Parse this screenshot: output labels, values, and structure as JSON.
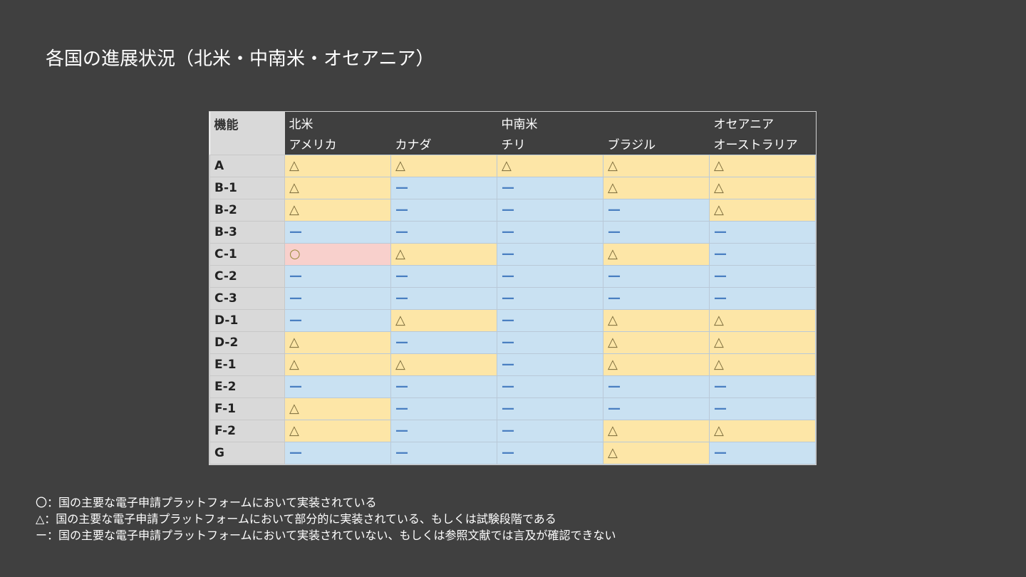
{
  "title": "各国の進展状況（北米・中南米・オセアニア）",
  "table": {
    "corner_label": "機能",
    "regions": [
      "北米",
      "中南米",
      "オセアニア"
    ],
    "countries": [
      "アメリカ",
      "カナダ",
      "チリ",
      "ブラジル",
      "オーストラリア"
    ],
    "rows": [
      {
        "label": "A",
        "values": [
          "△",
          "△",
          "△",
          "△",
          "△"
        ]
      },
      {
        "label": "B-1",
        "values": [
          "△",
          "—",
          "—",
          "△",
          "△"
        ]
      },
      {
        "label": "B-2",
        "values": [
          "△",
          "—",
          "—",
          "—",
          "△"
        ]
      },
      {
        "label": "B-3",
        "values": [
          "—",
          "—",
          "—",
          "—",
          "—"
        ]
      },
      {
        "label": "C-1",
        "values": [
          "○",
          "△",
          "—",
          "△",
          "—"
        ]
      },
      {
        "label": "C-2",
        "values": [
          "—",
          "—",
          "—",
          "—",
          "—"
        ]
      },
      {
        "label": "C-3",
        "values": [
          "—",
          "—",
          "—",
          "—",
          "—"
        ]
      },
      {
        "label": "D-1",
        "values": [
          "—",
          "△",
          "—",
          "△",
          "△"
        ]
      },
      {
        "label": "D-2",
        "values": [
          "△",
          "—",
          "—",
          "△",
          "△"
        ]
      },
      {
        "label": "E-1",
        "values": [
          "△",
          "△",
          "—",
          "△",
          "△"
        ]
      },
      {
        "label": "E-2",
        "values": [
          "—",
          "—",
          "—",
          "—",
          "—"
        ]
      },
      {
        "label": "F-1",
        "values": [
          "△",
          "—",
          "—",
          "—",
          "—"
        ]
      },
      {
        "label": "F-2",
        "values": [
          "△",
          "—",
          "—",
          "△",
          "△"
        ]
      },
      {
        "label": "G",
        "values": [
          "—",
          "—",
          "—",
          "△",
          "—"
        ]
      }
    ]
  },
  "legend": [
    "〇：国の主要な電子申請プラットフォームにおいて実装されている",
    "△：国の主要な電子申請プラットフォームにおいて部分的に実装されている、もしくは試験段階である",
    "ー：国の主要な電子申請プラットフォームにおいて実装されていない、もしくは参照文献では言及が確認できない"
  ],
  "colors": {
    "implemented": "#f8d0cc",
    "partial": "#fde6a7",
    "none": "#c9e1f2",
    "header": "#3f3f3f"
  }
}
